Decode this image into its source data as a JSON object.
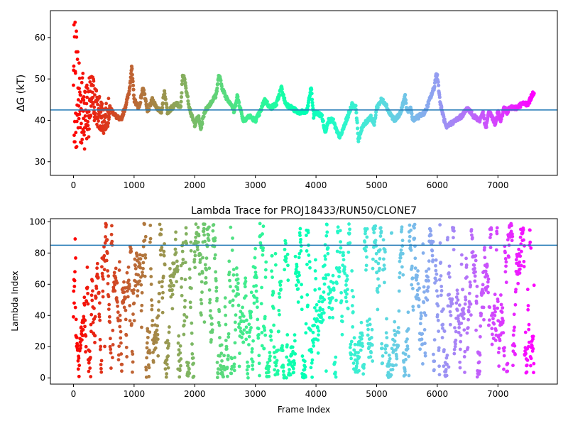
{
  "chart_data": [
    {
      "type": "scatter",
      "title": "",
      "xlabel": "",
      "ylabel": "ΔG (kT)",
      "xlim": [
        -380,
        7980
      ],
      "ylim": [
        26.7,
        66.5
      ],
      "xticks": [
        0,
        1000,
        2000,
        3000,
        4000,
        5000,
        6000,
        7000
      ],
      "yticks": [
        30,
        40,
        50,
        60
      ],
      "hline": 42.5,
      "hline_color": "#1f77b4",
      "n_frames": 7600,
      "colormap": "rainbow (early frames red, late frames violet)",
      "trace_keypoints": {
        "x": [
          0,
          60,
          120,
          180,
          250,
          320,
          400,
          470,
          520,
          600,
          700,
          780,
          850,
          920,
          960,
          1000,
          1080,
          1150,
          1220,
          1300,
          1380,
          1450,
          1500,
          1550,
          1620,
          1700,
          1770,
          1800,
          1830,
          1900,
          1950,
          2000,
          2060,
          2100,
          2160,
          2250,
          2350,
          2400,
          2450,
          2500,
          2600,
          2650,
          2700,
          2800,
          2900,
          3000,
          3080,
          3150,
          3250,
          3350,
          3430,
          3460,
          3500,
          3600,
          3700,
          3850,
          3920,
          3960,
          4000,
          4100,
          4150,
          4200,
          4280,
          4350,
          4400,
          4500,
          4550,
          4600,
          4660,
          4700,
          4750,
          4900,
          4960,
          5000,
          5080,
          5150,
          5200,
          5300,
          5400,
          5470,
          5500,
          5560,
          5600,
          5700,
          5800,
          5900,
          5950,
          5980,
          6000,
          6050,
          6100,
          6150,
          6200,
          6300,
          6400,
          6500,
          6600,
          6700,
          6750,
          6800,
          6850,
          6900,
          6950,
          7000,
          7050,
          7100,
          7150,
          7200,
          7300,
          7400,
          7500,
          7560,
          7600
        ],
        "y": [
          45,
          47,
          44,
          42,
          43,
          46,
          42,
          41,
          40,
          43,
          41,
          40,
          43,
          47,
          53,
          45,
          43,
          48,
          42,
          45,
          43,
          42,
          47,
          42,
          43,
          44,
          43,
          51,
          50,
          44,
          41,
          39,
          41,
          38,
          42,
          44,
          46,
          51,
          48,
          46,
          44,
          42,
          46,
          40,
          41,
          40,
          42,
          45,
          43,
          44,
          48,
          46,
          44,
          43,
          42,
          42,
          48,
          41,
          42,
          41,
          37,
          40,
          40,
          37,
          36,
          40,
          42,
          44,
          43,
          35,
          38,
          41,
          39,
          43,
          45,
          44,
          42,
          40,
          42,
          46,
          42,
          43,
          40,
          41,
          42,
          46,
          48,
          51,
          51,
          44,
          41,
          38,
          39,
          40,
          41,
          43,
          41,
          40,
          42,
          38,
          42,
          41,
          39,
          42,
          40,
          43,
          42,
          43,
          43,
          44,
          44,
          46,
          47
        ]
      }
    },
    {
      "type": "scatter",
      "title": "Lambda Trace for PROJ18433/RUN50/CLONE7",
      "xlabel": "Frame Index",
      "ylabel": "Lambda Index",
      "xlim": [
        -380,
        7980
      ],
      "ylim": [
        -4,
        102
      ],
      "xticks": [
        0,
        1000,
        2000,
        3000,
        4000,
        5000,
        6000,
        7000
      ],
      "yticks": [
        0,
        20,
        40,
        60,
        80,
        100
      ],
      "hline": 85,
      "hline_color": "#1f77b4",
      "n_frames": 7600,
      "value_range": [
        0,
        99
      ],
      "colormap": "rainbow (early frames red, late frames violet)"
    }
  ]
}
